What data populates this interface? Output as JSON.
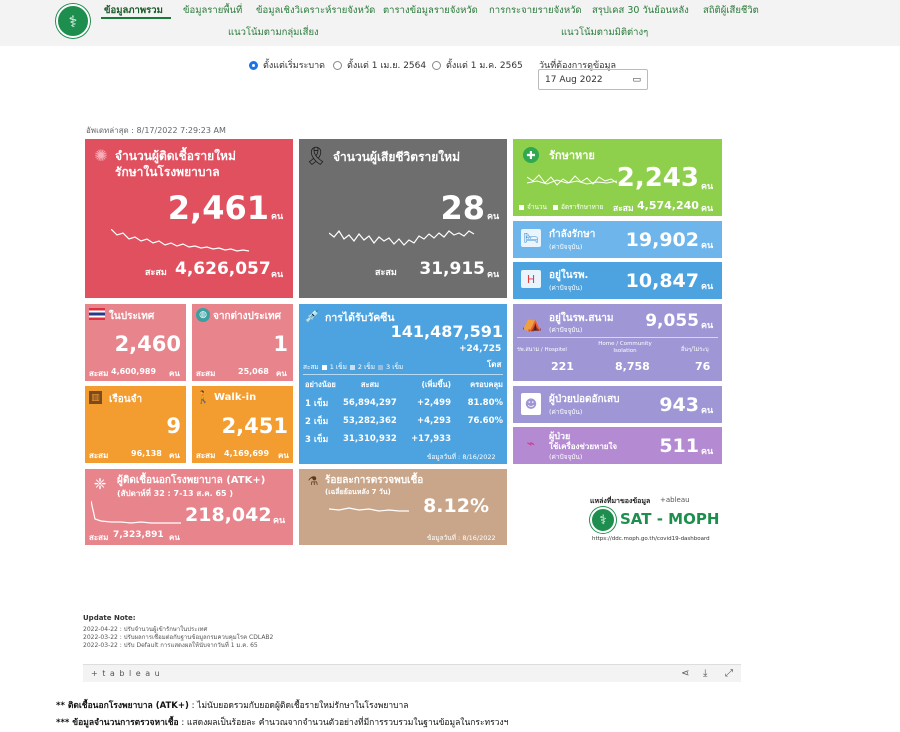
{
  "nav": {
    "items": [
      "ข้อมูลภาพรวม",
      "ข้อมูลรายพื้นที่",
      "ข้อมูลเชิงวิเคราะห์รายจังหวัด",
      "ตารางข้อมูลรายจังหวัด",
      "การกระจายรายจังหวัด",
      "สรุปเคส 30 วันย้อนหลัง",
      "สถิติผู้เสียชีวิต"
    ],
    "row2": [
      "แนวโน้มตามกลุ่มเสี่ยง",
      "แนวโน้มตามมิติต่างๆ"
    ]
  },
  "filters": {
    "options": [
      "ตั้งแต่เริ่มระบาด",
      "ตั้งแต่ 1 เม.ย. 2564",
      "ตั้งแต่ 1 ม.ค. 2565"
    ],
    "date_label": "วันที่ต้องการดูข้อมูล",
    "date_value": "17 Aug 2022"
  },
  "updated": "อัพเดทล่าสุด : 8/17/2022 7:29:23 AM",
  "colors": {
    "red": "#e0505f",
    "gray": "#6e6e6e",
    "green": "#8ecf4b",
    "blue": "#4da3e0",
    "lightblue": "#6db5ea",
    "purple": "#9f96d6",
    "violet": "#b48bd2",
    "orange": "#f39c2f",
    "salmon": "#e8848c",
    "tan": "#c9a68a"
  },
  "new_cases": {
    "title1": "จำนวนผู้ติดเชื้อรายใหม่",
    "title2": "รักษาในโรงพยาบาล",
    "value": "2,461",
    "unit": "คน",
    "acc_label": "สะสม",
    "acc": "4,626,057",
    "acc_unit": "คน"
  },
  "new_deaths": {
    "title": "จำนวนผู้เสียชีวิตรายใหม่",
    "value": "28",
    "unit": "คน",
    "acc_label": "สะสม",
    "acc": "31,915",
    "acc_unit": "คน"
  },
  "recovered": {
    "title": "รักษาหาย",
    "value": "2,243",
    "unit": "คน",
    "legend1": "จำนวน",
    "legend2": "อัตรารักษาหาย",
    "acc_label": "สะสม",
    "acc": "4,574,240",
    "acc_unit": "คน"
  },
  "treating": {
    "title": "กำลังรักษา",
    "sub": "(ค่าปัจจุบัน)",
    "value": "19,902",
    "unit": "คน"
  },
  "in_hospital": {
    "title": "อยู่ในรพ.",
    "sub": "(ค่าปัจจุบัน)",
    "value": "10,847",
    "unit": "คน"
  },
  "field_hospital": {
    "title": "อยู่ในรพ.สนาม",
    "sub": "(ค่าปัจจุบัน)",
    "value": "9,055",
    "unit": "คน",
    "cols": [
      {
        "label": "รพ.สนาม / Hospitel",
        "value": "221"
      },
      {
        "label": "Home / Community Isolation",
        "value": "8,758"
      },
      {
        "label": "อื่นๆ/ไม่ระบุ",
        "value": "76"
      }
    ]
  },
  "pneumonia": {
    "title": "ผู้ป่วยปอดอักเสบ",
    "sub": "(ค่าปัจจุบัน)",
    "value": "943",
    "unit": "คน"
  },
  "ventilator": {
    "title1": "ผู้ป่วย",
    "title2": "ใช้เครื่องช่วยหายใจ",
    "sub": "(ค่าปัจจุบัน)",
    "value": "511",
    "unit": "คน"
  },
  "domestic": {
    "title": "ในประเทศ",
    "value": "2,460",
    "acc_label": "สะสม",
    "acc": "4,600,989",
    "acc_unit": "คน"
  },
  "abroad": {
    "title": "จากต่างประเทศ",
    "value": "1",
    "acc_label": "สะสม",
    "acc": "25,068",
    "acc_unit": "คน"
  },
  "prison": {
    "title": "เรือนจำ",
    "value": "9",
    "acc_label": "สะสม",
    "acc": "96,138",
    "acc_unit": "คน"
  },
  "walkin": {
    "title": "Walk-in",
    "value": "2,451",
    "acc_label": "สะสม",
    "acc": "4,169,699",
    "acc_unit": "คน"
  },
  "vaccine": {
    "title": "การได้รับวัคซีน",
    "total": "141,487,591",
    "delta": "+24,725",
    "unit": "โดส",
    "legend": [
      "สะสม",
      "1 เข็ม",
      "2 เข็ม",
      "3 เข็ม"
    ],
    "headers": [
      "อย่างน้อย",
      "สะสม",
      "(เพิ่มขึ้น)",
      "ครอบคลุม"
    ],
    "rows": [
      [
        "1 เข็ม",
        "56,894,297",
        "+2,499",
        "81.80%"
      ],
      [
        "2 เข็ม",
        "53,282,362",
        "+4,293",
        "76.60%"
      ],
      [
        "3 เข็ม",
        "31,310,932",
        "+17,933",
        ""
      ]
    ],
    "as_of": "ข้อมูลวันที่ : 8/16/2022"
  },
  "atk": {
    "title1": "ผู้ติดเชื้อนอกโรงพยาบาล (ATK+)",
    "title2": "(สัปดาห์ที่  32 : 7-13 ส.ค. 65          )",
    "value": "218,042",
    "unit": "คน",
    "acc_label": "สะสม",
    "acc": "7,323,891",
    "acc_unit": "คน"
  },
  "positivity": {
    "title1": "ร้อยละการตรวจพบเชื้อ",
    "title2": "(เฉลี่ยย้อนหลัง 7 วัน)",
    "value": "8.12%",
    "as_of": "ข้อมูลวันที่ : 8/16/2022"
  },
  "source": {
    "label": "แหล่งที่มาของข้อมูล",
    "tableau": "+ableau",
    "brand": "SAT - MOPH",
    "url": "https://ddc.moph.go.th/covid19-dashboard"
  },
  "notes": {
    "head": "Update Note:",
    "lines": [
      "2022-04-22 : ปรับจำนวนผู้เข้ารักษาในประเทศ",
      "2022-03-22 : ปรับผลการเชื่อมต่อกับฐานข้อมูลกรมควบคุมโรค CDLAB2",
      "2022-03-22 : ปรับ Default การแสดงผลให้นับจากวันที่ 1 ม.ค. 65"
    ]
  },
  "tableau_bar": {
    "logo": "+ t a b l e a u"
  },
  "footer": [
    {
      "bold": "** ติดเชื้อนอกโรงพยาบาล (ATK+)",
      "text": " : ไม่นับยอดรวมกับยอดผู้ติดเชื้อรายใหม่รักษาในโรงพยาบาล"
    },
    {
      "bold": "*** ข้อมูลจำนวนการตรวจหาเชื้อ",
      "text": " : แสดงผลเป็นร้อยละ คำนวณจากจำนวนตัวอย่างที่มีการรวบรวมในฐานข้อมูลในกระทรวงฯ"
    }
  ]
}
